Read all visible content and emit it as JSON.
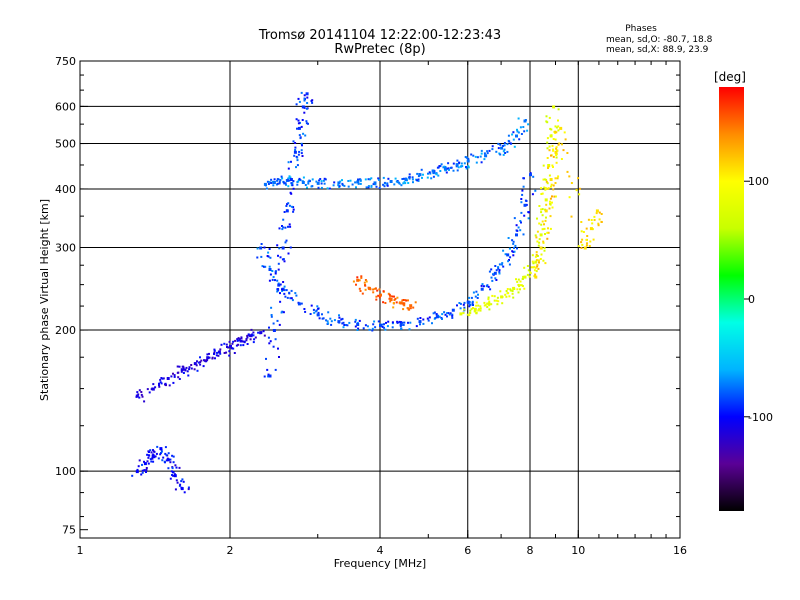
{
  "header": {
    "title_line1": "Tromsø 20141104 12:22:00-12:23:43",
    "title_line2": "RwPretec (8p)",
    "phase_heading": "Phases",
    "phase_o": "mean, sd,O: -80.7, 18.8",
    "phase_x": "mean, sd,X: 88.9, 23.9"
  },
  "colorbar": {
    "label": "[deg]",
    "ticks": [
      "100",
      "0",
      "-100"
    ],
    "tick_values": [
      100,
      0,
      -100
    ],
    "range": [
      -180,
      180
    ],
    "colors": [
      "#000000",
      "#5a0096",
      "#0000ff",
      "#00b4ff",
      "#00ffe6",
      "#00ff00",
      "#c8ff00",
      "#ffff00",
      "#ff8c00",
      "#ff0000"
    ]
  },
  "chart_data": {
    "type": "scatter",
    "title": "Tromsø 20141104 12:22:00-12:23:43",
    "subtitle": "RwPretec (8p)",
    "xlabel": "Frequency [MHz]",
    "ylabel": "Stationary phase Virtual Height [km]",
    "xscale": "log",
    "yscale": "log",
    "xlim": [
      1,
      16
    ],
    "ylim": [
      72,
      750
    ],
    "xticks": [
      1,
      2,
      4,
      6,
      8,
      10,
      16
    ],
    "yticks": [
      75,
      100,
      200,
      300,
      400,
      500,
      600,
      750
    ],
    "grid_x": [
      2,
      4,
      6,
      8,
      10
    ],
    "grid_y": [
      100,
      200,
      300,
      400,
      500,
      600
    ],
    "color_variable": "phase [deg]",
    "traces": [
      {
        "name": "",
        "phase": -75,
        "points": [
          [
            2.35,
            410
          ],
          [
            2.45,
            414
          ],
          [
            2.6,
            418
          ],
          [
            2.8,
            414
          ],
          [
            3.0,
            412
          ],
          [
            3.3,
            413
          ],
          [
            3.6,
            415
          ],
          [
            3.9,
            413
          ],
          [
            4.2,
            416
          ],
          [
            4.5,
            420
          ],
          [
            4.8,
            430
          ],
          [
            5.1,
            438
          ],
          [
            5.4,
            443
          ],
          [
            5.7,
            452
          ],
          [
            6.0,
            460
          ],
          [
            6.5,
            472
          ],
          [
            7.0,
            490
          ],
          [
            7.5,
            520
          ],
          [
            7.8,
            560
          ]
        ]
      },
      {
        "name": "",
        "phase": -85,
        "points": [
          [
            2.3,
            300
          ],
          [
            2.4,
            270
          ],
          [
            2.55,
            245
          ],
          [
            2.75,
            228
          ],
          [
            3.0,
            216
          ],
          [
            3.3,
            209
          ],
          [
            3.6,
            206
          ],
          [
            4.0,
            205
          ],
          [
            4.4,
            206
          ],
          [
            4.8,
            209
          ],
          [
            5.2,
            214
          ],
          [
            5.6,
            221
          ],
          [
            6.0,
            230
          ],
          [
            6.4,
            245
          ],
          [
            6.8,
            265
          ],
          [
            7.2,
            290
          ],
          [
            7.5,
            320
          ],
          [
            7.8,
            370
          ],
          [
            8.0,
            430
          ]
        ]
      },
      {
        "name": "",
        "phase": -90,
        "points": [
          [
            2.4,
            160
          ],
          [
            2.45,
            200
          ],
          [
            2.5,
            250
          ],
          [
            2.55,
            300
          ],
          [
            2.6,
            360
          ],
          [
            2.65,
            420
          ],
          [
            2.7,
            480
          ],
          [
            2.75,
            540
          ],
          [
            2.8,
            600
          ],
          [
            2.85,
            640
          ]
        ]
      },
      {
        "name": "",
        "phase": -110,
        "points": [
          [
            1.3,
            145
          ],
          [
            1.4,
            150
          ],
          [
            1.5,
            158
          ],
          [
            1.6,
            165
          ],
          [
            1.7,
            170
          ],
          [
            1.8,
            175
          ],
          [
            1.9,
            180
          ],
          [
            2.0,
            185
          ],
          [
            2.1,
            190
          ],
          [
            2.2,
            195
          ],
          [
            2.3,
            198
          ]
        ]
      },
      {
        "name": "",
        "phase": -100,
        "points": [
          [
            1.3,
            100
          ],
          [
            1.35,
            104
          ],
          [
            1.4,
            108
          ],
          [
            1.45,
            112
          ],
          [
            1.5,
            106
          ],
          [
            1.55,
            98
          ],
          [
            1.6,
            92
          ]
        ]
      },
      {
        "name": "",
        "phase": 80,
        "points": [
          [
            5.8,
            217
          ],
          [
            6.2,
            222
          ],
          [
            6.6,
            228
          ],
          [
            7.0,
            236
          ],
          [
            7.4,
            246
          ],
          [
            7.8,
            260
          ],
          [
            8.2,
            280
          ],
          [
            8.4,
            320
          ],
          [
            8.6,
            380
          ],
          [
            8.7,
            450
          ],
          [
            8.8,
            520
          ],
          [
            8.9,
            600
          ]
        ]
      },
      {
        "name": "",
        "phase": 150,
        "points": [
          [
            3.6,
            256
          ],
          [
            3.8,
            246
          ],
          [
            4.0,
            238
          ],
          [
            4.2,
            233
          ],
          [
            4.4,
            229
          ],
          [
            4.6,
            226
          ]
        ]
      },
      {
        "name": "",
        "phase": 110,
        "points": [
          [
            8.2,
            260
          ],
          [
            8.4,
            300
          ],
          [
            8.6,
            360
          ],
          [
            8.8,
            420
          ],
          [
            9.0,
            480
          ],
          [
            9.2,
            540
          ],
          [
            10.3,
            300
          ],
          [
            10.6,
            330
          ],
          [
            10.9,
            360
          ]
        ]
      }
    ]
  }
}
